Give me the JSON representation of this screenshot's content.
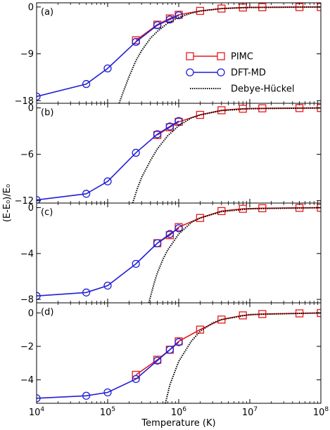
{
  "chart_data": {
    "type": "line",
    "xlabel": "Temperature (K)",
    "ylabel": "(E-E₀)/E₀",
    "xscale": "log",
    "xlim": [
      10000,
      100000000
    ],
    "x_ticks": [
      {
        "value": 10000,
        "base": "10",
        "exp": "4"
      },
      {
        "value": 100000,
        "base": "10",
        "exp": "5"
      },
      {
        "value": 1000000,
        "base": "10",
        "exp": "6"
      },
      {
        "value": 10000000,
        "base": "10",
        "exp": "7"
      },
      {
        "value": 100000000,
        "base": "10",
        "exp": "8"
      }
    ],
    "legend": {
      "placement": "inside panel (a), right",
      "entries": [
        {
          "label": "PIMC",
          "color": "#e41a1c",
          "marker": "square",
          "style": "solid"
        },
        {
          "label": "DFT-MD",
          "color": "#1f1fd6",
          "marker": "circle",
          "style": "solid"
        },
        {
          "label": "Debye-Hückel",
          "color": "#000000",
          "marker": "none",
          "style": "dotted"
        }
      ]
    },
    "panels": [
      {
        "label": "(a)",
        "ylim": [
          -18.5,
          0.8
        ],
        "yticks": [
          {
            "value": 0,
            "label": "0"
          },
          {
            "value": -9,
            "label": "−9"
          },
          {
            "value": -18,
            "label": "−18"
          }
        ],
        "series": [
          {
            "name": "PIMC",
            "x": [
              250000,
              500000,
              750000,
              1000000,
              2000000,
              4000000,
              8000000,
              15000000,
              50000000,
              100000000
            ],
            "y": [
              -6.4,
              -3.4,
              -2.2,
              -1.5,
              -0.75,
              -0.3,
              -0.1,
              -0.05,
              -0.02,
              -0.01
            ]
          },
          {
            "name": "DFT-MD",
            "x": [
              10000,
              50000,
              100000,
              250000,
              500000,
              750000,
              1000000
            ],
            "y": [
              -17.2,
              -14.8,
              -11.8,
              -6.7,
              -3.5,
              -2.4,
              -1.6
            ]
          },
          {
            "name": "Debye-Hückel",
            "x": [
              145000,
              170000,
              200000,
              250000,
              300000,
              400000,
              500000,
              700000,
              1000000,
              1500000,
              2000000,
              4000000,
              10000000,
              100000000
            ],
            "y": [
              -18.5,
              -15.9,
              -13.4,
              -10.3,
              -8.4,
              -6.0,
              -4.7,
              -3.1,
              -2.0,
              -1.2,
              -0.8,
              -0.3,
              -0.1,
              0
            ]
          }
        ]
      },
      {
        "label": "(b)",
        "ylim": [
          -12.3,
          0.6
        ],
        "yticks": [
          {
            "value": 0,
            "label": "0"
          },
          {
            "value": -6,
            "label": "−6"
          },
          {
            "value": -12,
            "label": "−12"
          }
        ],
        "series": [
          {
            "name": "PIMC",
            "x": [
              500000,
              750000,
              1000000,
              2000000,
              4000000,
              8000000,
              15000000,
              50000000,
              100000000
            ],
            "y": [
              -3.5,
              -2.5,
              -1.8,
              -0.9,
              -0.3,
              -0.1,
              -0.05,
              -0.02,
              -0.01
            ]
          },
          {
            "name": "DFT-MD",
            "x": [
              10000,
              50000,
              100000,
              250000,
              500000,
              750000,
              1000000
            ],
            "y": [
              -11.9,
              -11.1,
              -9.5,
              -5.8,
              -3.4,
              -2.4,
              -1.7
            ]
          },
          {
            "name": "Debye-Hückel",
            "x": [
              225000,
              260000,
              300000,
              400000,
              500000,
              700000,
              1000000,
              1500000,
              2000000,
              4000000,
              10000000,
              100000000
            ],
            "y": [
              -12.3,
              -10.5,
              -9.0,
              -6.8,
              -5.3,
              -3.6,
              -2.3,
              -1.3,
              -0.9,
              -0.35,
              -0.1,
              0
            ]
          }
        ]
      },
      {
        "label": "(c)",
        "ylim": [
          -8.3,
          0.4
        ],
        "yticks": [
          {
            "value": 0,
            "label": "0"
          },
          {
            "value": -4,
            "label": "−4"
          },
          {
            "value": -8,
            "label": "−8"
          }
        ],
        "series": [
          {
            "name": "PIMC",
            "x": [
              500000,
              750000,
              1000000,
              2000000,
              4000000,
              8000000,
              15000000,
              50000000,
              100000000
            ],
            "y": [
              -3.1,
              -2.4,
              -1.7,
              -0.9,
              -0.3,
              -0.1,
              -0.05,
              -0.02,
              -0.01
            ]
          },
          {
            "name": "DFT-MD",
            "x": [
              10000,
              50000,
              100000,
              250000,
              500000,
              750000,
              1000000
            ],
            "y": [
              -7.7,
              -7.4,
              -6.8,
              -4.9,
              -3.1,
              -2.3,
              -1.8
            ]
          },
          {
            "name": "Debye-Hückel",
            "x": [
              380000,
              450000,
              500000,
              600000,
              700000,
              1000000,
              1500000,
              2000000,
              4000000,
              10000000,
              100000000
            ],
            "y": [
              -8.3,
              -6.6,
              -5.7,
              -4.5,
              -3.7,
              -2.3,
              -1.3,
              -0.9,
              -0.35,
              -0.1,
              0
            ]
          }
        ]
      },
      {
        "label": "(d)",
        "ylim": [
          -5.4,
          0.6
        ],
        "yticks": [
          {
            "value": 0,
            "label": "0"
          },
          {
            "value": -2,
            "label": "−2"
          },
          {
            "value": -4,
            "label": "−4"
          }
        ],
        "series": [
          {
            "name": "PIMC",
            "x": [
              250000,
              500000,
              750000,
              1000000,
              2000000,
              4000000,
              8000000,
              15000000,
              50000000,
              100000000
            ],
            "y": [
              -3.7,
              -2.8,
              -2.2,
              -1.7,
              -1.0,
              -0.4,
              -0.15,
              -0.07,
              -0.03,
              -0.01
            ]
          },
          {
            "name": "DFT-MD",
            "x": [
              10000,
              50000,
              100000,
              250000,
              500000,
              750000,
              1000000
            ],
            "y": [
              -5.1,
              -4.95,
              -4.75,
              -3.95,
              -2.85,
              -2.2,
              -1.75
            ]
          },
          {
            "name": "Debye-Hückel",
            "x": [
              650000,
              750000,
              1000000,
              1500000,
              2000000,
              3000000,
              4000000,
              10000000,
              100000000
            ],
            "y": [
              -5.4,
              -4.3,
              -2.9,
              -1.7,
              -1.1,
              -0.6,
              -0.4,
              -0.1,
              0
            ]
          }
        ]
      }
    ]
  }
}
